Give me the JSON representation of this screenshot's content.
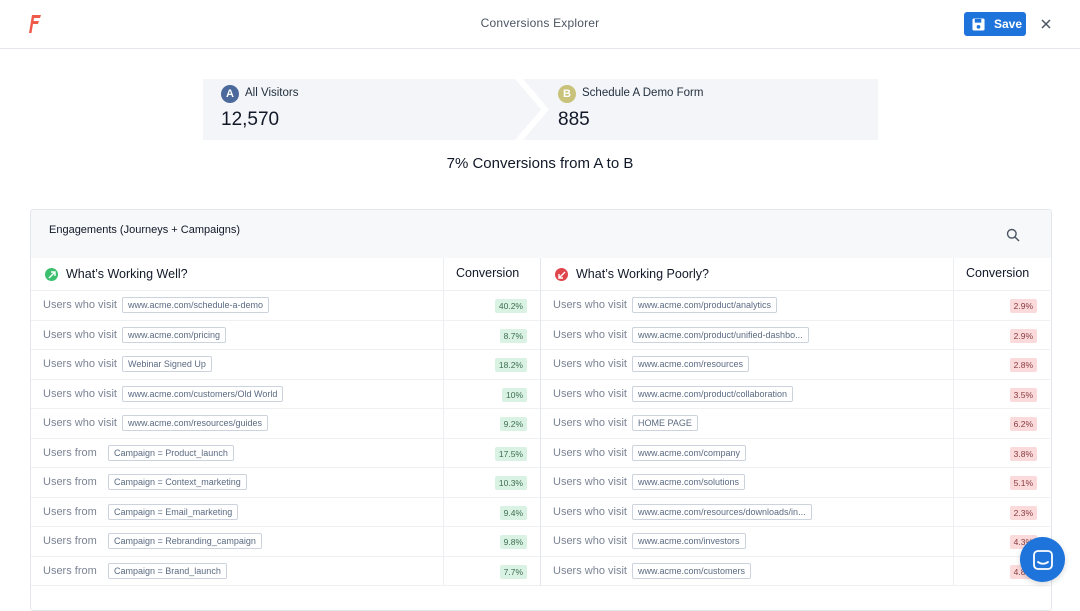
{
  "app": {
    "title": "Conversions Explorer",
    "save_label": "Save"
  },
  "funnel": {
    "step_a": {
      "badge": "A",
      "label": "All Visitors",
      "value": "12,570",
      "color": "#4b6a9b"
    },
    "step_b": {
      "badge": "B",
      "label": "Schedule A Demo Form",
      "value": "885",
      "color": "#c9c27a"
    },
    "summary": "7% Conversions from A to B"
  },
  "panel": {
    "title": "Engagements (Journeys + Campaigns)"
  },
  "working_well": {
    "title": "What’s Working Well?",
    "conversion_header": "Conversion",
    "rows": [
      {
        "label": "Users who visit",
        "tag": "www.acme.com/schedule-a-demo",
        "value": "40.2%"
      },
      {
        "label": "Users who visit",
        "tag": "www.acme.com/pricing",
        "value": "8.7%"
      },
      {
        "label": "Users who visit",
        "tag": "Webinar Signed Up",
        "value": "18.2%"
      },
      {
        "label": "Users who visit",
        "tag": "www.acme.com/customers/Old World",
        "value": "10%"
      },
      {
        "label": "Users who visit",
        "tag": "www.acme.com/resources/guides",
        "value": "9.2%"
      },
      {
        "label": "Users from",
        "tag": "Campaign = Product_launch",
        "value": "17.5%"
      },
      {
        "label": "Users from",
        "tag": "Campaign = Context_marketing",
        "value": "10.3%"
      },
      {
        "label": "Users from",
        "tag": "Campaign = Email_marketing",
        "value": "9.4%"
      },
      {
        "label": "Users from",
        "tag": "Campaign = Rebranding_campaign",
        "value": "9.8%"
      },
      {
        "label": "Users from",
        "tag": "Campaign = Brand_launch",
        "value": "7.7%"
      }
    ]
  },
  "working_poorly": {
    "title": "What’s Working Poorly?",
    "conversion_header": "Conversion",
    "rows": [
      {
        "label": "Users who visit",
        "tag": "www.acme.com/product/analytics",
        "value": "2.9%"
      },
      {
        "label": "Users who visit",
        "tag": "www.acme.com/product/unified-dashbo...",
        "value": "2.9%"
      },
      {
        "label": "Users who visit",
        "tag": "www.acme.com/resources",
        "value": "2.8%"
      },
      {
        "label": "Users who visit",
        "tag": "www.acme.com/product/collaboration",
        "value": "3.5%"
      },
      {
        "label": "Users who visit",
        "tag": "HOME PAGE",
        "value": "6.2%"
      },
      {
        "label": "Users who visit",
        "tag": "www.acme.com/company",
        "value": "3.8%"
      },
      {
        "label": "Users who visit",
        "tag": "www.acme.com/solutions",
        "value": "5.1%"
      },
      {
        "label": "Users who visit",
        "tag": "www.acme.com/resources/downloads/in...",
        "value": "2.3%"
      },
      {
        "label": "Users who visit",
        "tag": "www.acme.com/investors",
        "value": "4.3%"
      },
      {
        "label": "Users who visit",
        "tag": "www.acme.com/customers",
        "value": "4.8%"
      }
    ]
  },
  "colors": {
    "accent": "#1f74db",
    "good": "#3cbf6f",
    "bad": "#e0474c"
  }
}
